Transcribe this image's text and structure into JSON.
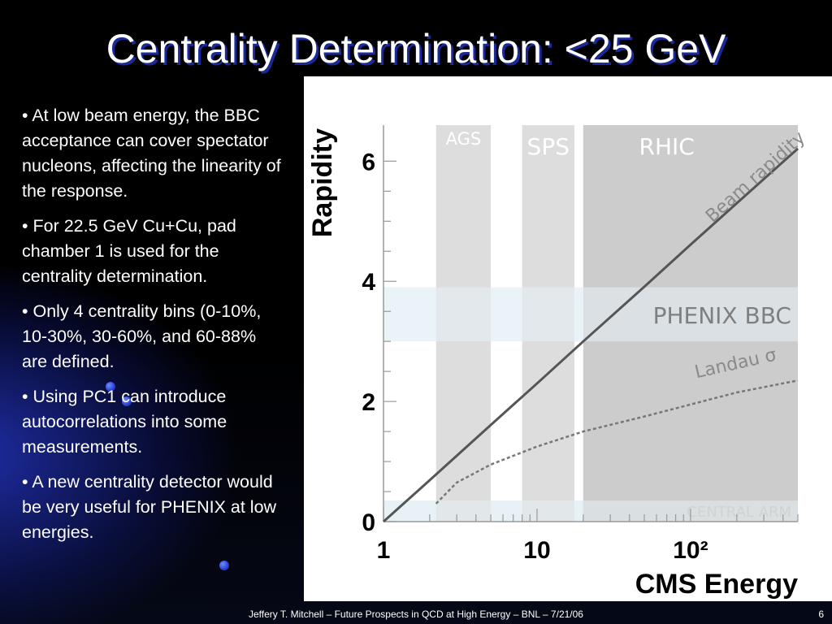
{
  "slide": {
    "title": "Centrality Determination: <25 GeV",
    "bullets": [
      "• At low beam energy, the BBC acceptance can cover spectator nucleons, affecting the linearity of the response.",
      "• For 22.5 GeV Cu+Cu, pad chamber 1 is used for the centrality determination.",
      "• Only 4 centrality bins (0-10%, 10-30%, 30-60%, and 60-88% are defined.",
      "• Using PC1 can introduce autocorrelations into some measurements.",
      "• A new centrality detector would be very useful for PHENIX at low energies."
    ],
    "footer": "Jeffery T. Mitchell – Future Prospects in QCD at High Energy – BNL – 7/21/06",
    "page_number": "6"
  },
  "chart_data": {
    "type": "line",
    "xlabel": "CMS Energy",
    "ylabel": "Rapidity",
    "xscale": "log",
    "xlim": [
      1,
      500
    ],
    "ylim": [
      0,
      6.6
    ],
    "x_tick_labels": [
      "1",
      "10",
      "10²"
    ],
    "y_tick_labels": [
      "0",
      "2",
      "4",
      "6"
    ],
    "energy_bands": [
      {
        "label": "AGS",
        "x_range": [
          2.2,
          5.0
        ],
        "color": "#d9d9d9"
      },
      {
        "label": "SPS",
        "x_range": [
          8.0,
          17.5
        ],
        "color": "#d9d9d9"
      },
      {
        "label": "RHIC",
        "x_range": [
          20,
          500
        ],
        "color": "#c6c6c6"
      }
    ],
    "rapidity_bands": [
      {
        "label": "PHENIX BBC",
        "y_range": [
          3.0,
          3.9
        ],
        "color": "#eaf3f7"
      },
      {
        "label": "CENTRAL ARM",
        "y_range": [
          0.0,
          0.35
        ],
        "color": "#e8f1f5"
      }
    ],
    "series": [
      {
        "name": "Beam rapidity",
        "style": "solid",
        "x": [
          1,
          2,
          5,
          10,
          20,
          50,
          100,
          200,
          500
        ],
        "y": [
          0.0,
          0.69,
          1.61,
          2.3,
          3.0,
          3.91,
          4.61,
          5.3,
          6.21
        ]
      },
      {
        "name": "Landau σ",
        "style": "dashed",
        "x": [
          2.2,
          3,
          5,
          10,
          20,
          50,
          100,
          200,
          500
        ],
        "y": [
          0.3,
          0.65,
          0.95,
          1.25,
          1.5,
          1.75,
          1.95,
          2.15,
          2.35
        ]
      }
    ]
  }
}
